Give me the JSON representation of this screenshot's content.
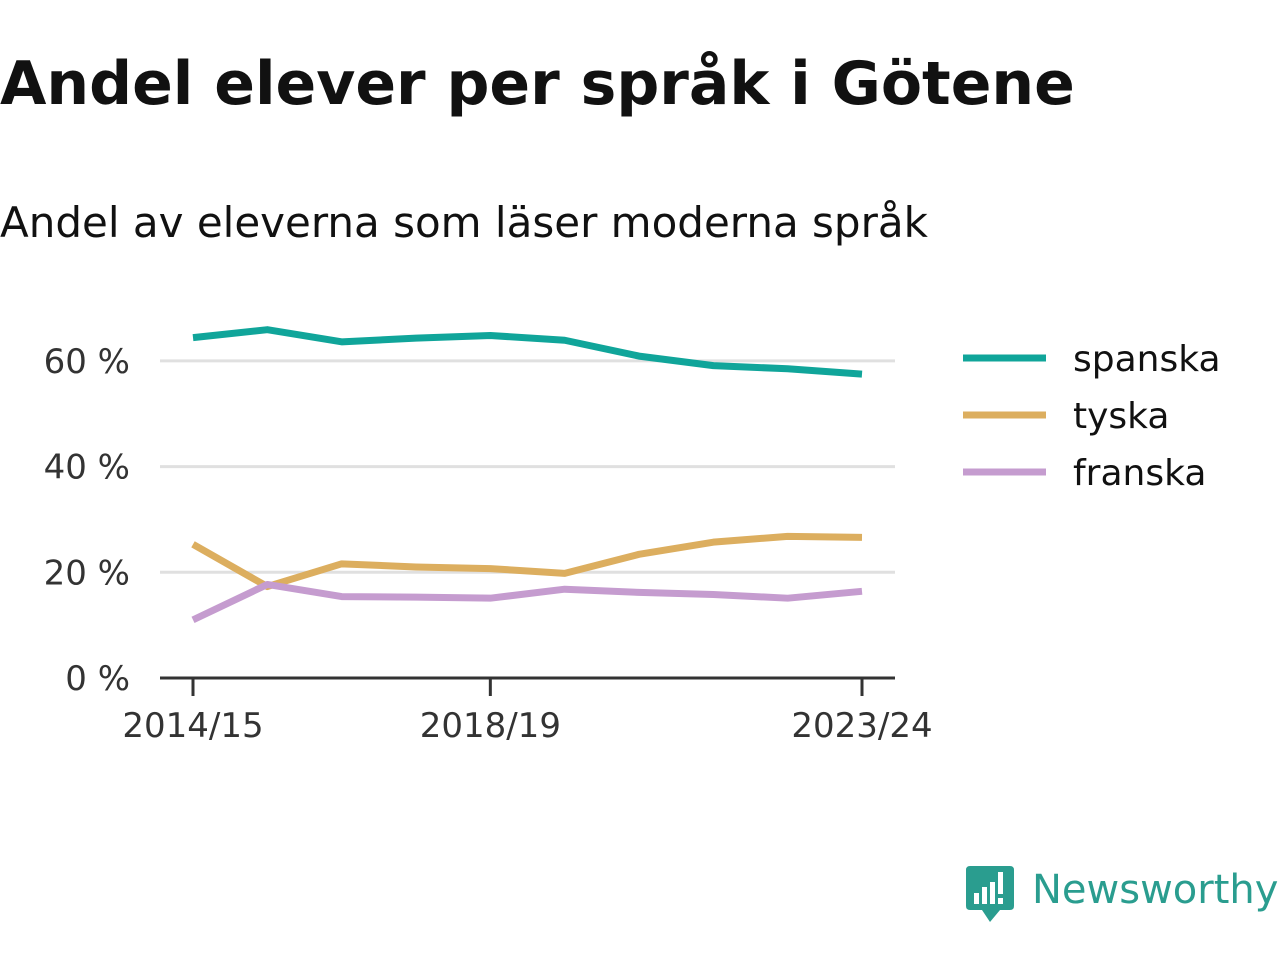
{
  "chart_data": {
    "type": "line",
    "title": "Andel elever per språk i Götene",
    "subtitle": "Andel av eleverna som läser moderna språk",
    "xlabel": "",
    "ylabel": "",
    "ylim": [
      0,
      70
    ],
    "y_ticks": [
      0,
      20,
      40,
      60
    ],
    "y_tick_labels": [
      "0 %",
      "20 %",
      "40 %",
      "60 %"
    ],
    "x": [
      "2014/15",
      "2015/16",
      "2016/17",
      "2017/18",
      "2018/19",
      "2019/20",
      "2020/21",
      "2021/22",
      "2022/23",
      "2023/24"
    ],
    "x_tick_labels": [
      "2014/15",
      "2018/19",
      "2023/24"
    ],
    "grid": true,
    "legend_position": "right",
    "series": [
      {
        "name": "spanska",
        "color": "#10a59a",
        "values": [
          64.4,
          65.9,
          63.6,
          64.3,
          64.8,
          63.9,
          60.9,
          59.1,
          58.5,
          57.5
        ]
      },
      {
        "name": "tyska",
        "color": "#dcae5f",
        "values": [
          25.3,
          17.3,
          21.6,
          21.0,
          20.7,
          19.8,
          23.4,
          25.7,
          26.8,
          26.6
        ]
      },
      {
        "name": "franska",
        "color": "#c59ccf",
        "values": [
          11.0,
          17.7,
          15.4,
          15.3,
          15.1,
          16.8,
          16.2,
          15.8,
          15.1,
          16.4
        ]
      }
    ]
  },
  "brand": {
    "name": "Newsworthy",
    "color": "#2a9d8f",
    "icon": "newsworthy-logo-icon"
  }
}
